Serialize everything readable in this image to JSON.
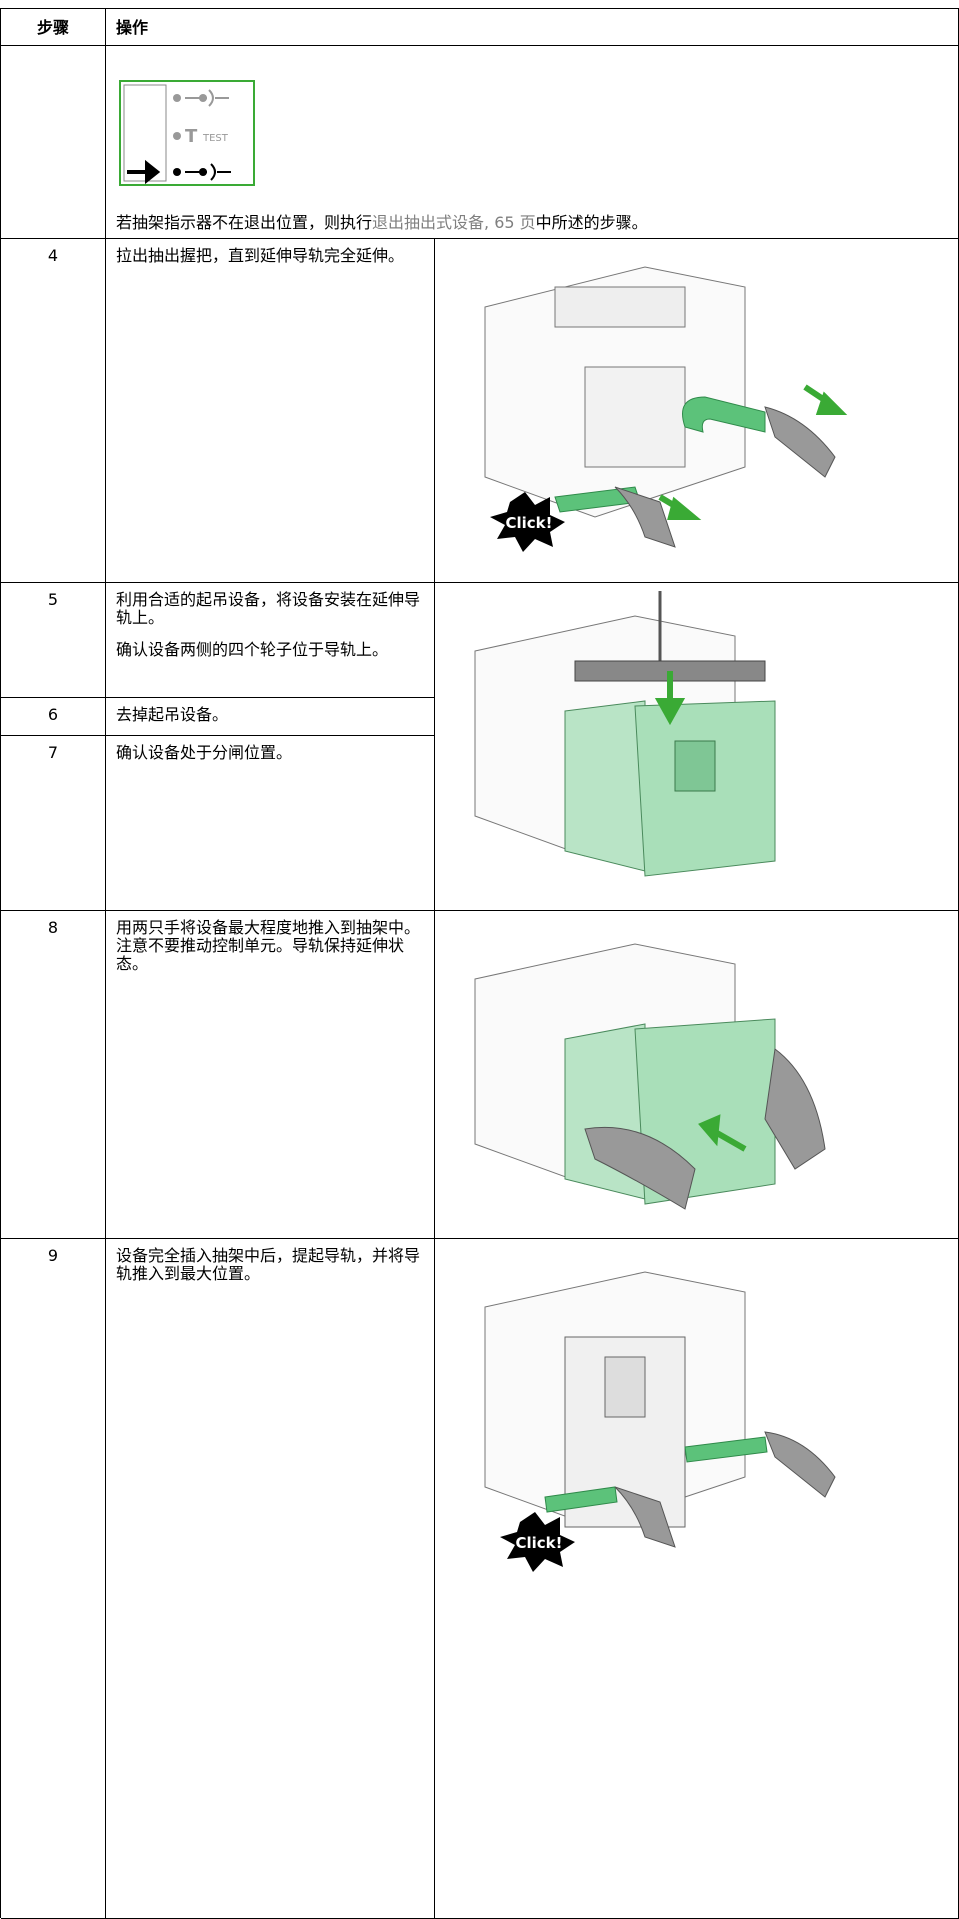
{
  "table": {
    "header": [
      "步骤",
      "操作"
    ],
    "intro": {
      "icon_label": "TEST",
      "text_before": "若抽架指示器不在退出位置，则执行",
      "link": "退出抽出式设备, 65 页",
      "text_after": "中所述的步骤。"
    },
    "steps": [
      {
        "step": "4",
        "paragraphs": [
          "拉出抽出握把，直到延伸导轨完全延伸。"
        ]
      },
      {
        "step": "5",
        "paragraphs": [
          "利用合适的起吊设备，将设备安装在延伸导轨上。",
          "确认设备两侧的四个轮子位于导轨上。"
        ]
      },
      {
        "step": "6",
        "paragraphs": [
          "去掉起吊设备。"
        ]
      },
      {
        "step": "7",
        "paragraphs": [
          "确认设备处于分闸位置。"
        ]
      },
      {
        "step": "8",
        "paragraphs": [
          "用两只手将设备最大程度地推入到抽架中。注意不要推动控制单元。导轨保持延伸状态。"
        ]
      },
      {
        "step": "9",
        "paragraphs": [
          "设备完全插入抽架中后，提起导轨，并将导轨推入到最大位置。"
        ]
      }
    ],
    "callouts": [
      "Click!",
      "Click!"
    ]
  }
}
